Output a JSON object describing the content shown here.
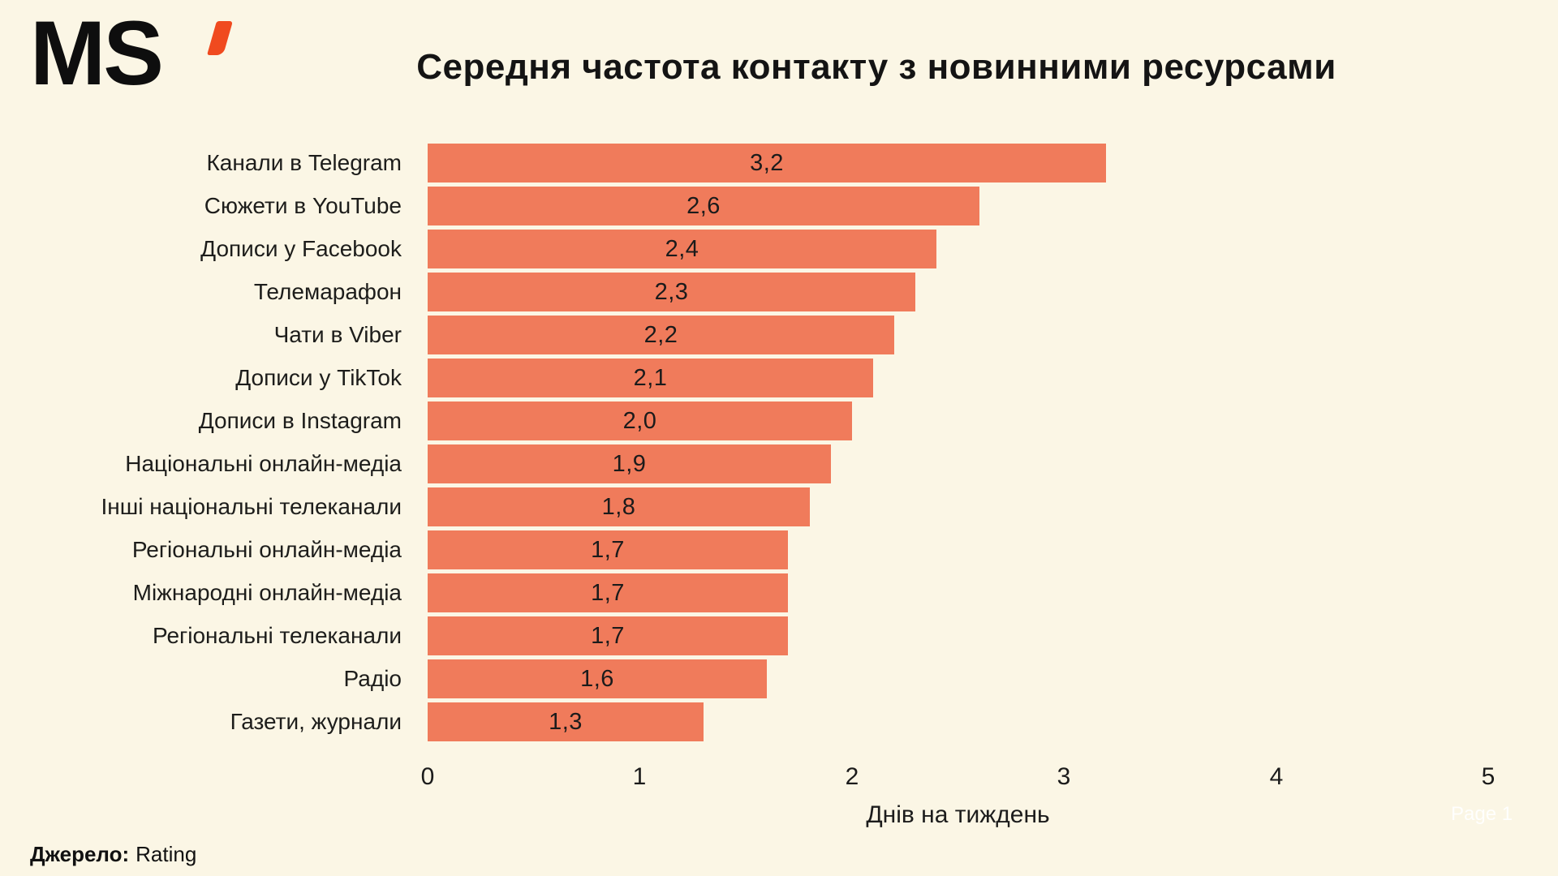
{
  "logo": {
    "text": "MS",
    "mark": "apostrophe-prime"
  },
  "title": "Середня частота контакту з новинними ресурсами",
  "chart_data": {
    "type": "bar",
    "orientation": "horizontal",
    "title": "Середня частота контакту з новинними ресурсами",
    "categories": [
      "Канали в Telegram",
      "Сюжети в YouTube",
      "Дописи у Facebook",
      "Телемарафон",
      "Чати в Viber",
      "Дописи у TikTok",
      "Дописи в Instagram",
      "Національні онлайн-медіа",
      "Інші національні телеканали",
      "Регіональні онлайн-медіа",
      "Міжнародні онлайн-медіа",
      "Регіональні телеканали",
      "Радіо",
      "Газети, журнали"
    ],
    "values": [
      3.2,
      2.6,
      2.4,
      2.3,
      2.2,
      2.1,
      2.0,
      1.9,
      1.8,
      1.7,
      1.7,
      1.7,
      1.6,
      1.3
    ],
    "value_labels": [
      "3,2",
      "2,6",
      "2,4",
      "2,3",
      "2,2",
      "2,1",
      "2,0",
      "1,9",
      "1,8",
      "1,7",
      "1,7",
      "1,7",
      "1,6",
      "1,3"
    ],
    "xlabel": "Днів на тиждень",
    "ylabel": "",
    "xlim": [
      0,
      5
    ],
    "x_ticks": [
      "0",
      "1",
      "2",
      "3",
      "4",
      "5"
    ],
    "grid": false,
    "legend": false,
    "value_label_position": "center-of-bar"
  },
  "footer": {
    "source_label": "Джерело:",
    "source_value": "Rating"
  },
  "page_label": "Page 1",
  "colors": {
    "background": "#FBF6E5",
    "bar": "#F07B5B",
    "logo_accent": "#F04A1F",
    "text": "#1B1B1B"
  }
}
